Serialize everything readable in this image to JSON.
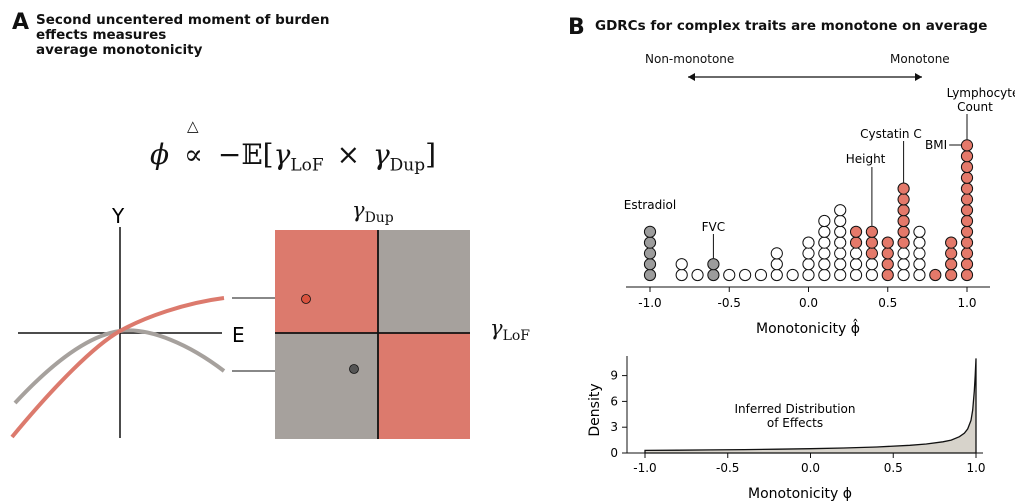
{
  "panel_a": {
    "letter": "A",
    "title_line1": "Second uncentered moment of burden effects measures",
    "title_line2": "average monotonicity",
    "formula": {
      "lhs": "ϕ",
      "relation_symbol": "∝",
      "relation_hat": "△",
      "rhs_prefix": "−𝔼[",
      "gamma_lof": "γ",
      "lof_sub": "LoF",
      "times": "×",
      "gamma_dup": "γ",
      "dup_sub": "Dup",
      "rhs_suffix": "]"
    },
    "curve_axis_y": "Y",
    "curve_axis_x": "E",
    "quad_label_top": "γ",
    "quad_label_top_sub": "Dup",
    "quad_label_right": "γ",
    "quad_label_right_sub": "LoF",
    "colors": {
      "monotone": "#dc7a6d",
      "nonmonotone": "#a6a19d",
      "point_red": "#d9533f",
      "point_gray": "#555555"
    }
  },
  "panel_b": {
    "letter": "B",
    "title": "GDRCs for complex traits are monotone on average",
    "arrow_left": "Non-monotone",
    "arrow_right": "Monotone",
    "chart_data": [
      {
        "type": "scatter",
        "subtype": "dot-plot",
        "xlabel": "Monotonicity ϕ̂",
        "xlim": [
          -1.1,
          1.1
        ],
        "xticks": [
          "-1.0",
          "-0.5",
          "0.0",
          "0.5",
          "1.0"
        ],
        "xtick_values": [
          -1.0,
          -0.5,
          0.0,
          0.5,
          1.0
        ],
        "columns": [
          {
            "x": -1.0,
            "count": 5,
            "highlight": "gray"
          },
          {
            "x": -0.8,
            "count": 2
          },
          {
            "x": -0.7,
            "count": 1
          },
          {
            "x": -0.6,
            "count": 2,
            "highlight": "gray"
          },
          {
            "x": -0.5,
            "count": 1
          },
          {
            "x": -0.4,
            "count": 1
          },
          {
            "x": -0.3,
            "count": 1
          },
          {
            "x": -0.2,
            "count": 3
          },
          {
            "x": -0.1,
            "count": 1
          },
          {
            "x": 0.0,
            "count": 4
          },
          {
            "x": 0.1,
            "count": 6
          },
          {
            "x": 0.2,
            "count": 7
          },
          {
            "x": 0.3,
            "count": 5,
            "highlight_top": 2
          },
          {
            "x": 0.4,
            "count": 5,
            "highlight_top": 3
          },
          {
            "x": 0.5,
            "count": 4,
            "highlight_top": 4
          },
          {
            "x": 0.6,
            "count": 9,
            "highlight_top": 6
          },
          {
            "x": 0.7,
            "count": 5
          },
          {
            "x": 0.8,
            "count": 1,
            "highlight_top": 1
          },
          {
            "x": 0.9,
            "count": 4,
            "highlight_top": 4
          },
          {
            "x": 1.0,
            "count": 13,
            "highlight_top": 13
          }
        ],
        "highlight_colors": {
          "red": "#e4796a",
          "gray": "#9c9c9c"
        },
        "annotations": [
          {
            "text": "Estradiol",
            "x": -1.0
          },
          {
            "text": "FVC",
            "x": -0.6
          },
          {
            "text": "Height",
            "x": 0.4
          },
          {
            "text": "Cystatin C",
            "x": 0.6
          },
          {
            "text": "BMI",
            "x": 0.9
          },
          {
            "text": "Lymphocyte",
            "x": 1.0
          },
          {
            "text": "Count",
            "x": 1.0
          }
        ]
      },
      {
        "type": "area",
        "xlabel": "Monotonicity ϕ",
        "ylabel": "Density",
        "xlim": [
          -1.1,
          1.05
        ],
        "ylim": [
          0,
          11.5
        ],
        "xticks": [
          "-1.0",
          "-0.5",
          "0.0",
          "0.5",
          "1.0"
        ],
        "xtick_values": [
          -1.0,
          -0.5,
          0.0,
          0.5,
          1.0
        ],
        "yticks": [
          "0",
          "3",
          "6",
          "9"
        ],
        "ytick_values": [
          0,
          3,
          6,
          9
        ],
        "x": [
          -1.0,
          -0.8,
          -0.6,
          -0.4,
          -0.2,
          0.0,
          0.2,
          0.4,
          0.6,
          0.7,
          0.8,
          0.85,
          0.9,
          0.93,
          0.95,
          0.97,
          0.98,
          0.99,
          0.995,
          1.0
        ],
        "y": [
          0.3,
          0.33,
          0.36,
          0.4,
          0.44,
          0.5,
          0.58,
          0.7,
          0.9,
          1.05,
          1.3,
          1.5,
          1.9,
          2.3,
          2.8,
          3.8,
          5.0,
          7.2,
          9.0,
          11.0
        ],
        "fill": "#d7d3cb",
        "annotation_line1": "Inferred Distribution",
        "annotation_line2": "of Effects"
      }
    ]
  }
}
